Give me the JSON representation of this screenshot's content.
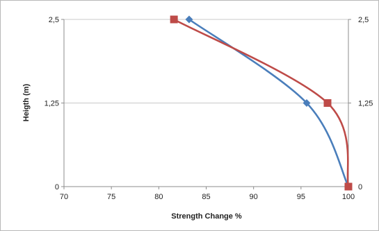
{
  "chart_data": {
    "type": "line",
    "title": "",
    "xlabel": "Strength  Change %",
    "ylabel": "Heigth (m)",
    "xlim": [
      70,
      100
    ],
    "ylim": [
      0,
      2.5
    ],
    "x_ticks": [
      "70",
      "75",
      "80",
      "85",
      "90",
      "95",
      "100"
    ],
    "y_ticks": [
      "0",
      "1,25",
      "2,5"
    ],
    "y_ticks_right": [
      "0",
      "1,25",
      "2,5"
    ],
    "grid": "horizontal",
    "legend": "none",
    "series": [
      {
        "marker": "diamond",
        "color": "#4a7ebb",
        "points": [
          {
            "x": 100,
            "y": 0
          },
          {
            "x": 95.6,
            "y": 1.25
          },
          {
            "x": 83.2,
            "y": 2.5
          }
        ]
      },
      {
        "marker": "square",
        "color": "#be4b48",
        "points": [
          {
            "x": 100,
            "y": 0
          },
          {
            "x": 97.8,
            "y": 1.25
          },
          {
            "x": 81.6,
            "y": 2.5
          }
        ]
      }
    ]
  }
}
